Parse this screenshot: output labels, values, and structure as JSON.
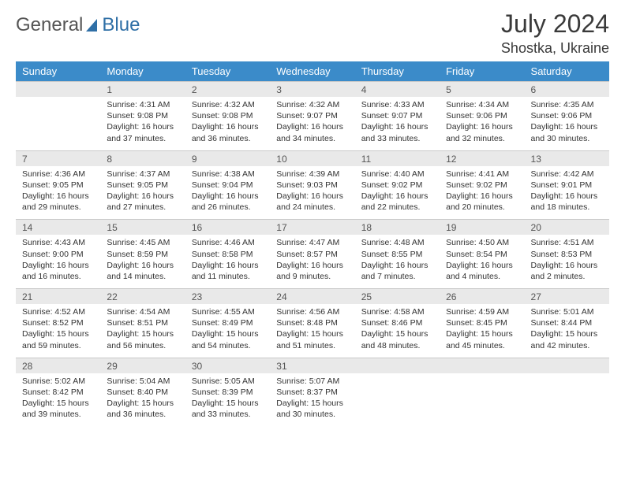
{
  "logo": {
    "text1": "General",
    "text2": "Blue",
    "text1_color": "#666666",
    "text2_color": "#2f6fa6",
    "icon_color": "#2f6fa6"
  },
  "header": {
    "month": "July 2024",
    "location": "Shostka, Ukraine"
  },
  "style": {
    "header_bg": "#3b8bc9",
    "header_text": "#ffffff",
    "daynum_bg": "#e9e9e9",
    "border": "#c9c9c9",
    "body_fontsize": 10.5,
    "weekday_fontsize": 13
  },
  "weekdays": [
    "Sunday",
    "Monday",
    "Tuesday",
    "Wednesday",
    "Thursday",
    "Friday",
    "Saturday"
  ],
  "weeks": [
    [
      {
        "n": "",
        "sr": "",
        "ss": "",
        "dl": ""
      },
      {
        "n": "1",
        "sr": "4:31 AM",
        "ss": "9:08 PM",
        "dl": "16 hours and 37 minutes."
      },
      {
        "n": "2",
        "sr": "4:32 AM",
        "ss": "9:08 PM",
        "dl": "16 hours and 36 minutes."
      },
      {
        "n": "3",
        "sr": "4:32 AM",
        "ss": "9:07 PM",
        "dl": "16 hours and 34 minutes."
      },
      {
        "n": "4",
        "sr": "4:33 AM",
        "ss": "9:07 PM",
        "dl": "16 hours and 33 minutes."
      },
      {
        "n": "5",
        "sr": "4:34 AM",
        "ss": "9:06 PM",
        "dl": "16 hours and 32 minutes."
      },
      {
        "n": "6",
        "sr": "4:35 AM",
        "ss": "9:06 PM",
        "dl": "16 hours and 30 minutes."
      }
    ],
    [
      {
        "n": "7",
        "sr": "4:36 AM",
        "ss": "9:05 PM",
        "dl": "16 hours and 29 minutes."
      },
      {
        "n": "8",
        "sr": "4:37 AM",
        "ss": "9:05 PM",
        "dl": "16 hours and 27 minutes."
      },
      {
        "n": "9",
        "sr": "4:38 AM",
        "ss": "9:04 PM",
        "dl": "16 hours and 26 minutes."
      },
      {
        "n": "10",
        "sr": "4:39 AM",
        "ss": "9:03 PM",
        "dl": "16 hours and 24 minutes."
      },
      {
        "n": "11",
        "sr": "4:40 AM",
        "ss": "9:02 PM",
        "dl": "16 hours and 22 minutes."
      },
      {
        "n": "12",
        "sr": "4:41 AM",
        "ss": "9:02 PM",
        "dl": "16 hours and 20 minutes."
      },
      {
        "n": "13",
        "sr": "4:42 AM",
        "ss": "9:01 PM",
        "dl": "16 hours and 18 minutes."
      }
    ],
    [
      {
        "n": "14",
        "sr": "4:43 AM",
        "ss": "9:00 PM",
        "dl": "16 hours and 16 minutes."
      },
      {
        "n": "15",
        "sr": "4:45 AM",
        "ss": "8:59 PM",
        "dl": "16 hours and 14 minutes."
      },
      {
        "n": "16",
        "sr": "4:46 AM",
        "ss": "8:58 PM",
        "dl": "16 hours and 11 minutes."
      },
      {
        "n": "17",
        "sr": "4:47 AM",
        "ss": "8:57 PM",
        "dl": "16 hours and 9 minutes."
      },
      {
        "n": "18",
        "sr": "4:48 AM",
        "ss": "8:55 PM",
        "dl": "16 hours and 7 minutes."
      },
      {
        "n": "19",
        "sr": "4:50 AM",
        "ss": "8:54 PM",
        "dl": "16 hours and 4 minutes."
      },
      {
        "n": "20",
        "sr": "4:51 AM",
        "ss": "8:53 PM",
        "dl": "16 hours and 2 minutes."
      }
    ],
    [
      {
        "n": "21",
        "sr": "4:52 AM",
        "ss": "8:52 PM",
        "dl": "15 hours and 59 minutes."
      },
      {
        "n": "22",
        "sr": "4:54 AM",
        "ss": "8:51 PM",
        "dl": "15 hours and 56 minutes."
      },
      {
        "n": "23",
        "sr": "4:55 AM",
        "ss": "8:49 PM",
        "dl": "15 hours and 54 minutes."
      },
      {
        "n": "24",
        "sr": "4:56 AM",
        "ss": "8:48 PM",
        "dl": "15 hours and 51 minutes."
      },
      {
        "n": "25",
        "sr": "4:58 AM",
        "ss": "8:46 PM",
        "dl": "15 hours and 48 minutes."
      },
      {
        "n": "26",
        "sr": "4:59 AM",
        "ss": "8:45 PM",
        "dl": "15 hours and 45 minutes."
      },
      {
        "n": "27",
        "sr": "5:01 AM",
        "ss": "8:44 PM",
        "dl": "15 hours and 42 minutes."
      }
    ],
    [
      {
        "n": "28",
        "sr": "5:02 AM",
        "ss": "8:42 PM",
        "dl": "15 hours and 39 minutes."
      },
      {
        "n": "29",
        "sr": "5:04 AM",
        "ss": "8:40 PM",
        "dl": "15 hours and 36 minutes."
      },
      {
        "n": "30",
        "sr": "5:05 AM",
        "ss": "8:39 PM",
        "dl": "15 hours and 33 minutes."
      },
      {
        "n": "31",
        "sr": "5:07 AM",
        "ss": "8:37 PM",
        "dl": "15 hours and 30 minutes."
      },
      {
        "n": "",
        "sr": "",
        "ss": "",
        "dl": ""
      },
      {
        "n": "",
        "sr": "",
        "ss": "",
        "dl": ""
      },
      {
        "n": "",
        "sr": "",
        "ss": "",
        "dl": ""
      }
    ]
  ],
  "labels": {
    "sunrise": "Sunrise:",
    "sunset": "Sunset:",
    "daylight": "Daylight:"
  }
}
